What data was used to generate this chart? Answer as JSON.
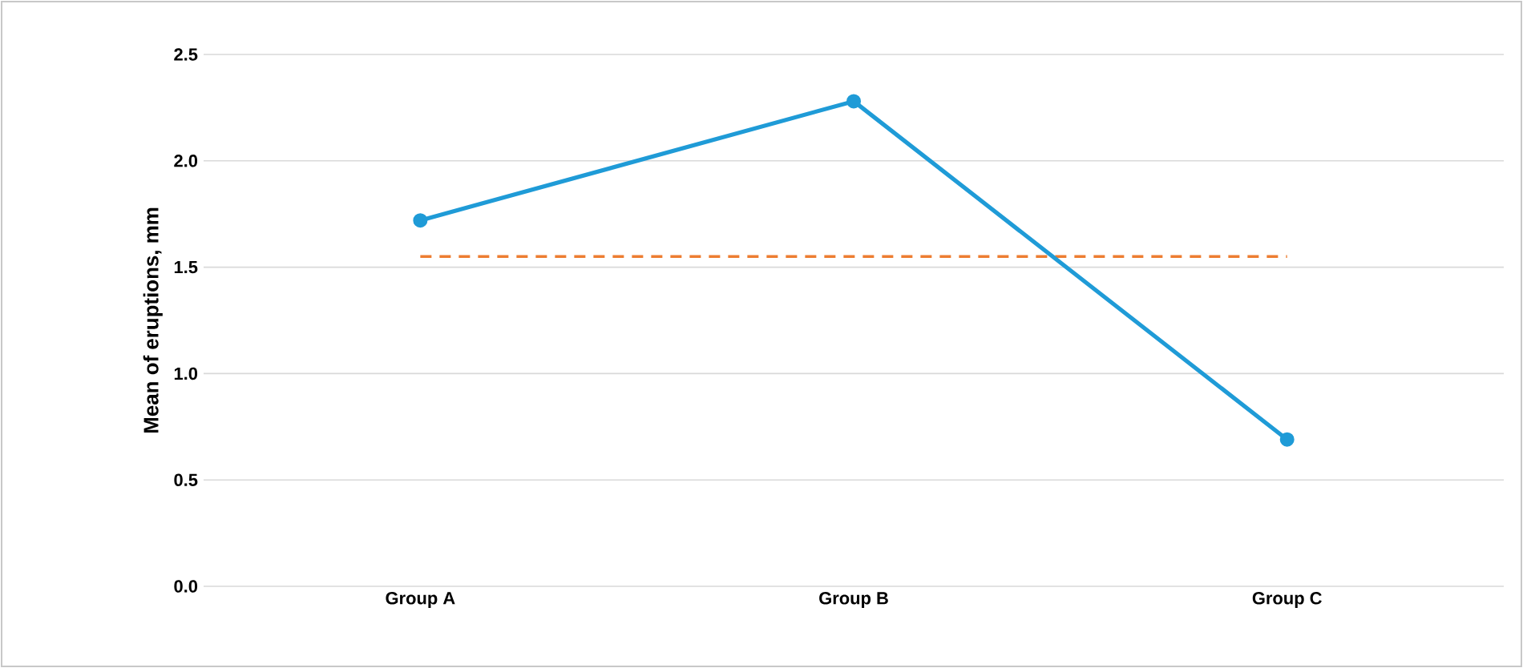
{
  "chart_data": {
    "type": "line",
    "ylabel": "Mean of eruptions, mm",
    "categories": [
      "Group A",
      "Group B",
      "Group C"
    ],
    "series": [
      {
        "color": "#1f9bd7",
        "values": [
          1.72,
          2.28,
          0.69
        ]
      }
    ],
    "ylim": [
      0,
      2.5
    ],
    "yticks": [
      {
        "value": 0,
        "label": "0.0"
      },
      {
        "value": 0.5,
        "label": "0.5"
      },
      {
        "value": 1,
        "label": "1.0"
      },
      {
        "value": 1.5,
        "label": "1.5"
      },
      {
        "value": 2,
        "label": "2.0"
      },
      {
        "value": 2.5,
        "label": "2.5"
      }
    ],
    "grid": "y",
    "marker": "circle",
    "line_style": "solid",
    "ref_lines": [
      {
        "axis": "y",
        "value": 1.55,
        "color": "#ed7d31",
        "line_style": "dashed"
      }
    ]
  }
}
